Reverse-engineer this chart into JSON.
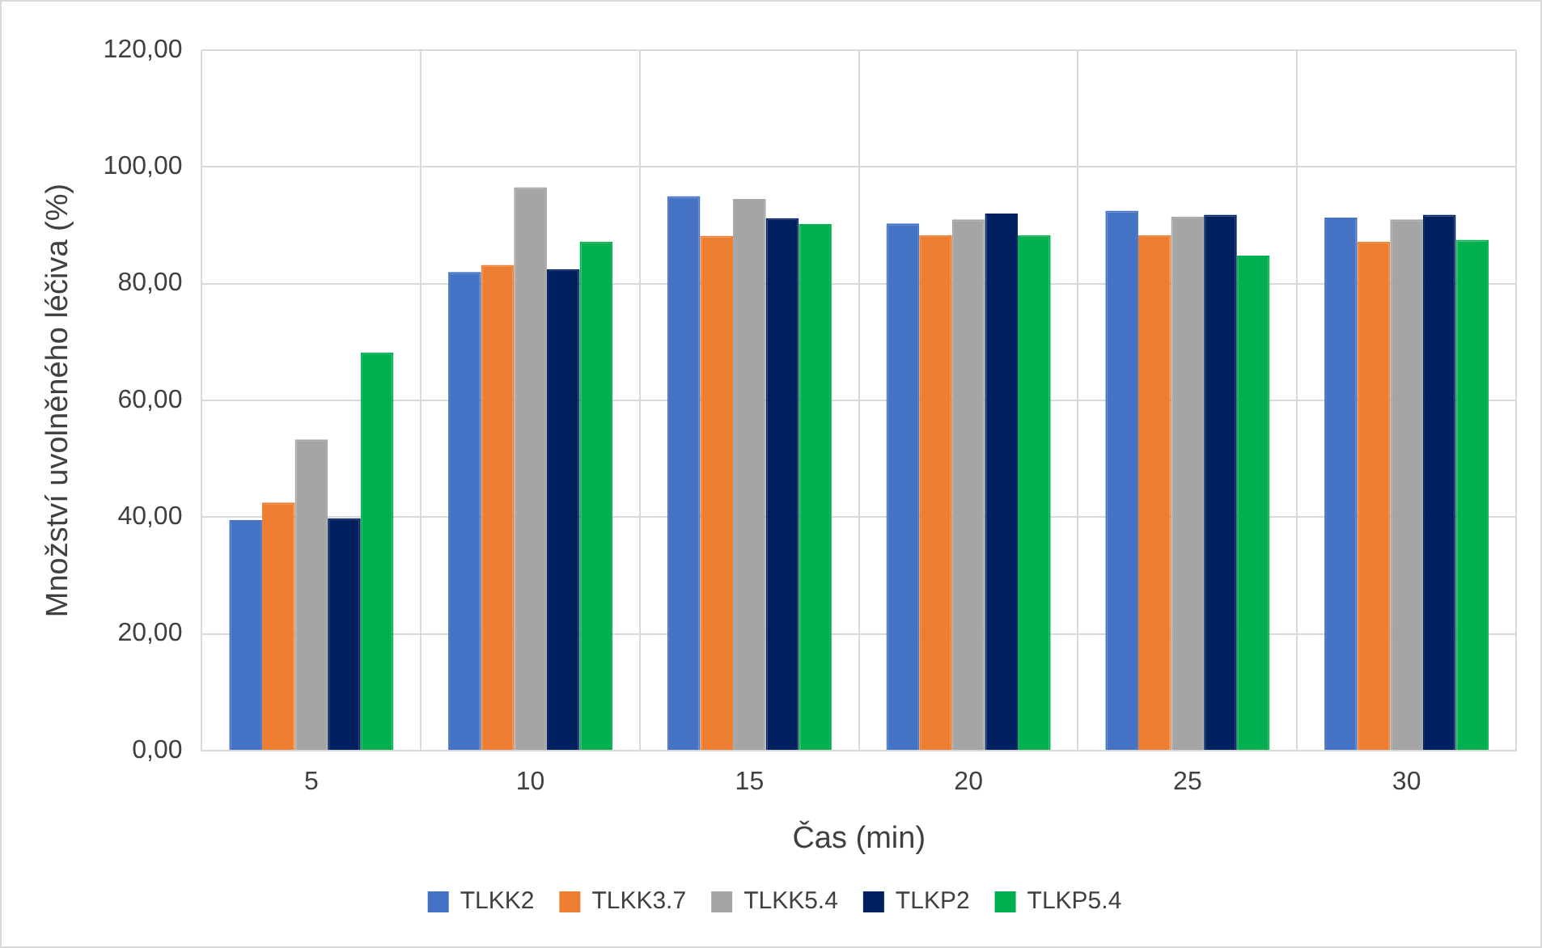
{
  "chart_data": {
    "type": "bar",
    "xlabel": "Čas (min)",
    "ylabel": "Množství uvolněného léčiva (%)",
    "categories": [
      "5",
      "10",
      "15",
      "20",
      "25",
      "30"
    ],
    "series": [
      {
        "name": "TLKK2",
        "color": "#4472c4",
        "values": [
          39.5,
          82,
          95,
          90.3,
          92.5,
          91.3
        ]
      },
      {
        "name": "TLKK3.7",
        "color": "#ed7d31",
        "values": [
          42.5,
          83.2,
          88.2,
          88.3,
          88.3,
          87.2
        ]
      },
      {
        "name": "TLKK5.4",
        "color": "#a5a5a5",
        "values": [
          53.3,
          96.5,
          94.5,
          91,
          91.5,
          91
        ]
      },
      {
        "name": "TLKP2",
        "color": "#002060",
        "values": [
          39.8,
          82.5,
          91.2,
          92,
          91.8,
          91.8
        ]
      },
      {
        "name": "TLKP5.4",
        "color": "#00b050",
        "values": [
          68.2,
          87.2,
          90.2,
          88.3,
          84.8,
          87.5
        ]
      }
    ],
    "ylim": [
      0,
      120
    ],
    "yticks": [
      {
        "value": 0,
        "label": "0,00"
      },
      {
        "value": 20,
        "label": "20,00"
      },
      {
        "value": 40,
        "label": "40,00"
      },
      {
        "value": 60,
        "label": "60,00"
      },
      {
        "value": 80,
        "label": "80,00"
      },
      {
        "value": 100,
        "label": "100,00"
      },
      {
        "value": 120,
        "label": "120,00"
      }
    ],
    "grid": true,
    "legend": "bottom"
  }
}
